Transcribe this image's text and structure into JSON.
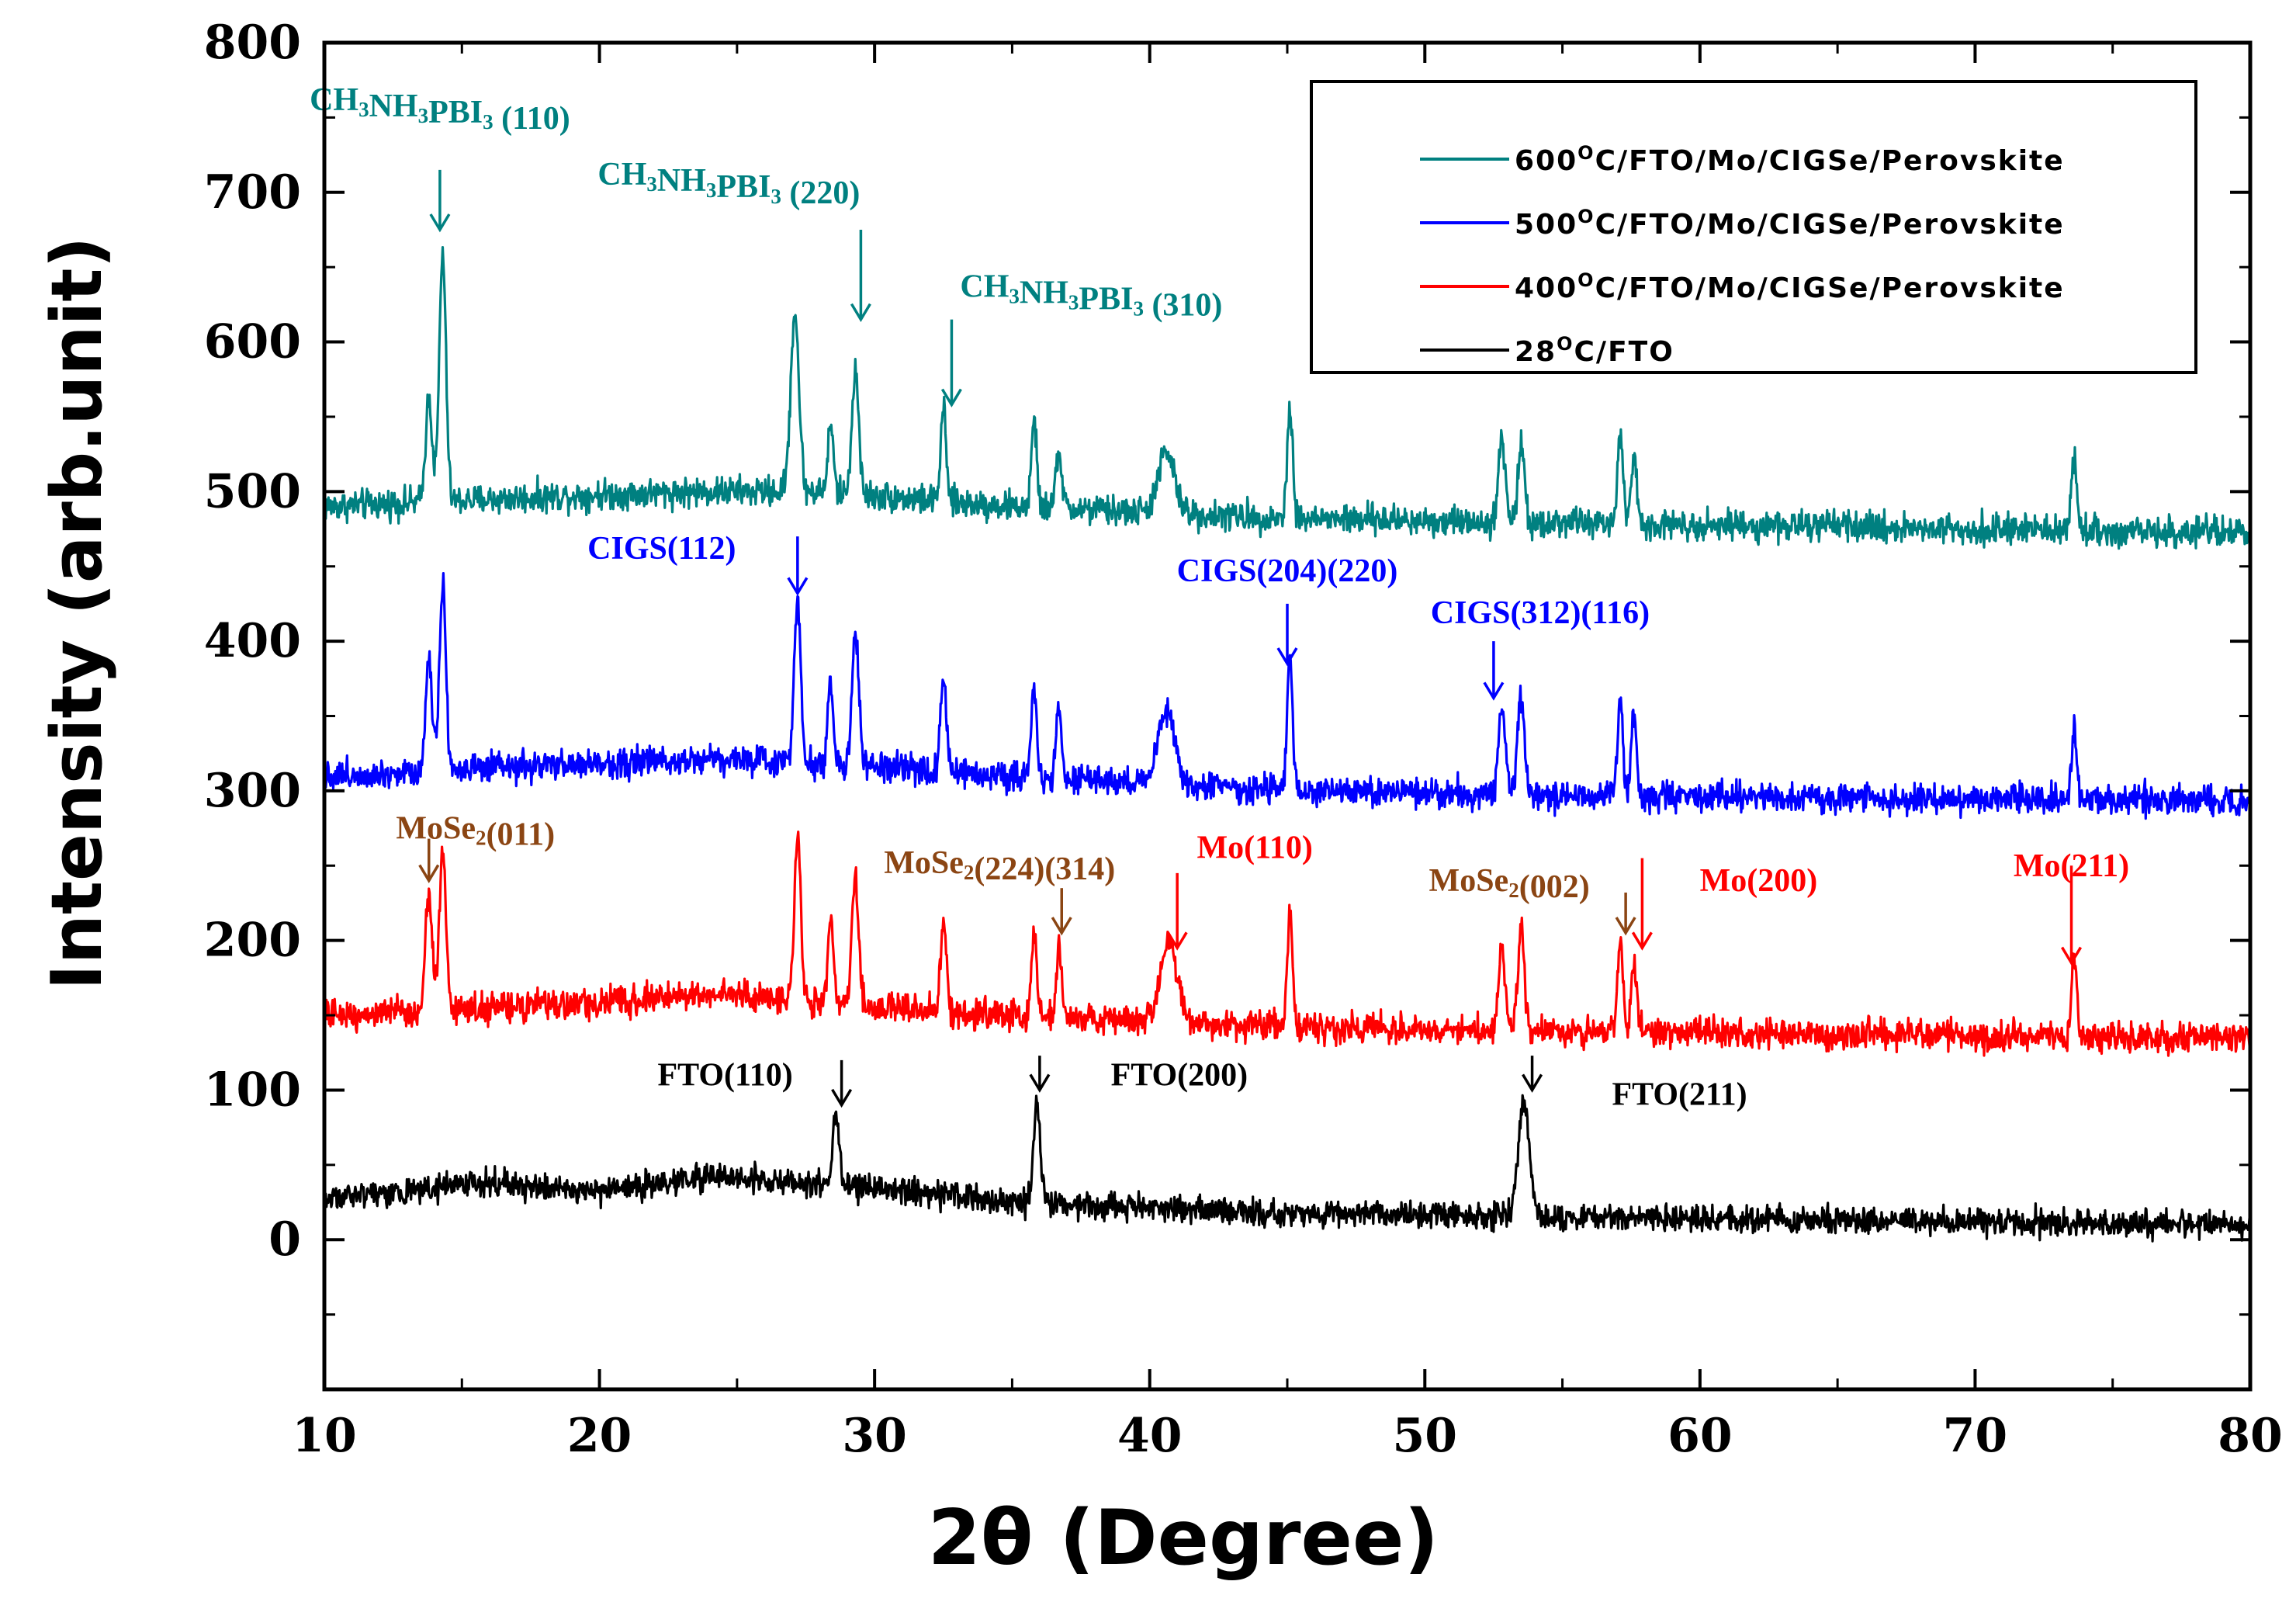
{
  "chart_data": {
    "type": "line",
    "title": "",
    "xlabel": "2θ (Degree)",
    "ylabel": "Intensity (arb.unit)",
    "xlim": [
      10,
      80
    ],
    "ylim": [
      -100,
      800
    ],
    "xticks": [
      10,
      20,
      30,
      40,
      50,
      60,
      70,
      80
    ],
    "yticks": [
      0,
      100,
      200,
      300,
      400,
      500,
      600,
      700,
      800
    ],
    "legend": {
      "position": "top-right",
      "entries": [
        {
          "prefix": "600",
          "sup": "O",
          "rest": "C/FTO/Mo/CIGSe/Perovskite",
          "series": 0
        },
        {
          "prefix": "500",
          "sup": "O",
          "rest": "C/FTO/Mo/CIGSe/Perovskite",
          "series": 1
        },
        {
          "prefix": "400",
          "sup": "O",
          "rest": "C/FTO/Mo/CIGSe/Perovskite",
          "series": 2
        },
        {
          "prefix": " 28",
          "sup": "O",
          "rest": "C/FTO",
          "series": 3
        }
      ]
    },
    "series": [
      {
        "name": "600°C/FTO/Mo/CIGSe/Perovskite",
        "color": "#008080",
        "baseline": [
          [
            10,
            490
          ],
          [
            20,
            498
          ],
          [
            24,
            500
          ],
          [
            28,
            500
          ],
          [
            35,
            490
          ],
          [
            45,
            482
          ],
          [
            60,
            478
          ],
          [
            80,
            472
          ]
        ],
        "noise": 9,
        "peaks": [
          {
            "x": 13.8,
            "h": 70,
            "w": 0.12
          },
          {
            "x": 14.3,
            "h": 165,
            "w": 0.12
          },
          {
            "x": 27.1,
            "h": 120,
            "w": 0.15
          },
          {
            "x": 28.4,
            "h": 45,
            "w": 0.1
          },
          {
            "x": 29.3,
            "h": 85,
            "w": 0.12
          },
          {
            "x": 32.5,
            "h": 60,
            "w": 0.1
          },
          {
            "x": 35.8,
            "h": 55,
            "w": 0.1
          },
          {
            "x": 36.7,
            "h": 40,
            "w": 0.1
          },
          {
            "x": 40.6,
            "h": 40,
            "w": 0.3
          },
          {
            "x": 45.1,
            "h": 75,
            "w": 0.1
          },
          {
            "x": 52.8,
            "h": 55,
            "w": 0.12
          },
          {
            "x": 53.5,
            "h": 50,
            "w": 0.12
          },
          {
            "x": 57.1,
            "h": 55,
            "w": 0.1
          },
          {
            "x": 57.6,
            "h": 45,
            "w": 0.1
          },
          {
            "x": 73.6,
            "h": 50,
            "w": 0.1
          }
        ]
      },
      {
        "name": "500°C/FTO/Mo/CIGSe/Perovskite",
        "color": "#0000ff",
        "baseline": [
          [
            10,
            310
          ],
          [
            20,
            318
          ],
          [
            24,
            322
          ],
          [
            28,
            318
          ],
          [
            35,
            310
          ],
          [
            45,
            300
          ],
          [
            60,
            296
          ],
          [
            80,
            293
          ]
        ],
        "noise": 9,
        "peaks": [
          {
            "x": 13.8,
            "h": 75,
            "w": 0.12
          },
          {
            "x": 14.3,
            "h": 125,
            "w": 0.12
          },
          {
            "x": 27.2,
            "h": 110,
            "w": 0.12
          },
          {
            "x": 28.4,
            "h": 55,
            "w": 0.1
          },
          {
            "x": 29.3,
            "h": 90,
            "w": 0.12
          },
          {
            "x": 32.5,
            "h": 65,
            "w": 0.1
          },
          {
            "x": 35.8,
            "h": 60,
            "w": 0.1
          },
          {
            "x": 36.7,
            "h": 45,
            "w": 0.1
          },
          {
            "x": 40.6,
            "h": 50,
            "w": 0.3
          },
          {
            "x": 45.1,
            "h": 85,
            "w": 0.1
          },
          {
            "x": 52.8,
            "h": 55,
            "w": 0.12
          },
          {
            "x": 53.5,
            "h": 65,
            "w": 0.12
          },
          {
            "x": 57.1,
            "h": 60,
            "w": 0.1
          },
          {
            "x": 57.6,
            "h": 50,
            "w": 0.1
          },
          {
            "x": 73.6,
            "h": 45,
            "w": 0.1
          }
        ]
      },
      {
        "name": "400°C/FTO/Mo/CIGSe/Perovskite",
        "color": "#ff0000",
        "baseline": [
          [
            10,
            150
          ],
          [
            20,
            158
          ],
          [
            24,
            165
          ],
          [
            28,
            158
          ],
          [
            35,
            150
          ],
          [
            45,
            142
          ],
          [
            60,
            138
          ],
          [
            80,
            135
          ]
        ],
        "noise": 9,
        "peaks": [
          {
            "x": 13.8,
            "h": 80,
            "w": 0.12
          },
          {
            "x": 14.3,
            "h": 105,
            "w": 0.12
          },
          {
            "x": 27.2,
            "h": 110,
            "w": 0.12
          },
          {
            "x": 28.4,
            "h": 55,
            "w": 0.1
          },
          {
            "x": 29.3,
            "h": 85,
            "w": 0.12
          },
          {
            "x": 32.5,
            "h": 60,
            "w": 0.1
          },
          {
            "x": 35.8,
            "h": 55,
            "w": 0.1
          },
          {
            "x": 36.7,
            "h": 45,
            "w": 0.1
          },
          {
            "x": 40.7,
            "h": 55,
            "w": 0.3
          },
          {
            "x": 45.1,
            "h": 75,
            "w": 0.1
          },
          {
            "x": 52.8,
            "h": 55,
            "w": 0.12
          },
          {
            "x": 53.5,
            "h": 70,
            "w": 0.12
          },
          {
            "x": 57.1,
            "h": 60,
            "w": 0.1
          },
          {
            "x": 57.6,
            "h": 45,
            "w": 0.1
          },
          {
            "x": 73.6,
            "h": 50,
            "w": 0.1
          }
        ]
      },
      {
        "name": "28°C/FTO",
        "color": "#000000",
        "baseline": [
          [
            10,
            28
          ],
          [
            16,
            38
          ],
          [
            20,
            32
          ],
          [
            24,
            42
          ],
          [
            28,
            38
          ],
          [
            35,
            25
          ],
          [
            45,
            18
          ],
          [
            60,
            14
          ],
          [
            80,
            10
          ]
        ],
        "noise": 8,
        "peaks": [
          {
            "x": 28.6,
            "h": 45,
            "w": 0.12
          },
          {
            "x": 35.9,
            "h": 65,
            "w": 0.12
          },
          {
            "x": 53.6,
            "h": 75,
            "w": 0.2
          }
        ]
      }
    ],
    "annotations": [
      {
        "label": "CH",
        "sub1": "3",
        "mid": "NH",
        "sub2": "3",
        "mid2": "PBI",
        "sub3": "3",
        "tail": " (110)",
        "x": 14.2,
        "y_label": 755,
        "y_arrow_top": 715,
        "y_arrow_tip": 675,
        "color": "#008080"
      },
      {
        "label": "CH",
        "sub1": "3",
        "mid": "NH",
        "sub2": "3",
        "mid2": "PBI",
        "sub3": "3",
        "tail": " (220)",
        "x": 29.5,
        "y_label": 705,
        "y_arrow_top": 675,
        "y_arrow_tip": 615,
        "color": "#008080"
      },
      {
        "label": "CH",
        "sub1": "3",
        "mid": "NH",
        "sub2": "3",
        "mid2": "PBI",
        "sub3": "3",
        "tail": " (310)",
        "x": 32.8,
        "y_label": 630,
        "y_arrow_top": 615,
        "y_arrow_tip": 558,
        "color": "#008080"
      },
      {
        "label": "CIGS(112)",
        "x": 27.2,
        "y_label": 455,
        "y_arrow_top": 470,
        "y_arrow_tip": 432,
        "color": "#0000ff"
      },
      {
        "label": "CIGS(204)(220)",
        "x": 45.0,
        "y_label": 440,
        "y_arrow_top": 425,
        "y_arrow_tip": 385,
        "color": "#0000ff"
      },
      {
        "label": "CIGS(312)(116)",
        "x": 52.5,
        "y_label": 412,
        "y_arrow_top": 400,
        "y_arrow_tip": 362,
        "color": "#0000ff"
      },
      {
        "label": "MoSe",
        "sub1": "2",
        "tail": "(011)",
        "x": 13.8,
        "y_label": 268,
        "y_arrow_top": 268,
        "y_arrow_tip": 240,
        "color": "#8b4513"
      },
      {
        "label": "MoSe",
        "sub1": "2",
        "tail": "(224)(314)",
        "x": 36.8,
        "y_label": 245,
        "y_arrow_top": 235,
        "y_arrow_tip": 205,
        "color": "#8b4513"
      },
      {
        "label": "Mo(110)",
        "x": 41.0,
        "y_label": 255,
        "y_arrow_top": 245,
        "y_arrow_tip": 195,
        "color": "#ff0000"
      },
      {
        "label": "MoSe",
        "sub1": "2",
        "tail": "(002)",
        "x": 57.3,
        "y_label": 233,
        "y_arrow_top": 232,
        "y_arrow_tip": 205,
        "color": "#8b4513"
      },
      {
        "label": "Mo(200)",
        "x": 57.9,
        "y_label": 233,
        "y_arrow_top": 255,
        "y_arrow_tip": 195,
        "color": "#ff0000"
      },
      {
        "label": "Mo(211)",
        "x": 73.5,
        "y_label": 243,
        "y_arrow_top": 250,
        "y_arrow_tip": 185,
        "color": "#ff0000"
      },
      {
        "label": "FTO(110)",
        "x": 28.8,
        "y_label": 103,
        "y_arrow_top": 120,
        "y_arrow_tip": 90,
        "color": "#000000"
      },
      {
        "label": "FTO(200)",
        "x": 36.0,
        "y_label": 103,
        "y_arrow_top": 123,
        "y_arrow_tip": 100,
        "color": "#000000"
      },
      {
        "label": "FTO(211)",
        "x": 53.9,
        "y_label": 90,
        "y_arrow_top": 123,
        "y_arrow_tip": 100,
        "color": "#000000"
      }
    ]
  }
}
